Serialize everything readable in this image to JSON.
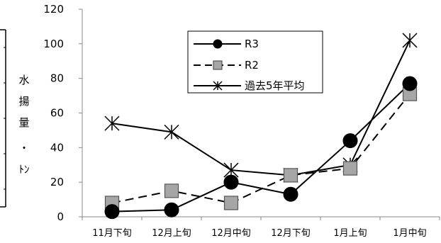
{
  "chart_data": {
    "type": "line",
    "categories": [
      "11月下旬",
      "12月上旬",
      "12月中旬",
      "12月下旬",
      "1月上旬",
      "1月中旬"
    ],
    "ylabel_chars": [
      "水",
      "揚",
      "量",
      "・",
      "ﾄﾝ"
    ],
    "ylim": [
      0,
      120
    ],
    "yticks": [
      0,
      20,
      40,
      60,
      80,
      100,
      120
    ],
    "grid": false,
    "legend_position": "top-center",
    "series": [
      {
        "name": "R3",
        "values": [
          3,
          4,
          20,
          13,
          44,
          77
        ],
        "line_style": "solid",
        "marker": "circle",
        "marker_color": "#000000",
        "line_color": "#000000"
      },
      {
        "name": "R2",
        "values": [
          8,
          15,
          8,
          24,
          28,
          71
        ],
        "line_style": "dashed",
        "marker": "square",
        "marker_color": "#a6a6a6",
        "line_color": "#000000"
      },
      {
        "name": "過去5年平均",
        "values": [
          54,
          49,
          27,
          24,
          30,
          102
        ],
        "line_style": "solid",
        "marker": "star",
        "marker_color": "#000000",
        "line_color": "#000000"
      }
    ]
  }
}
